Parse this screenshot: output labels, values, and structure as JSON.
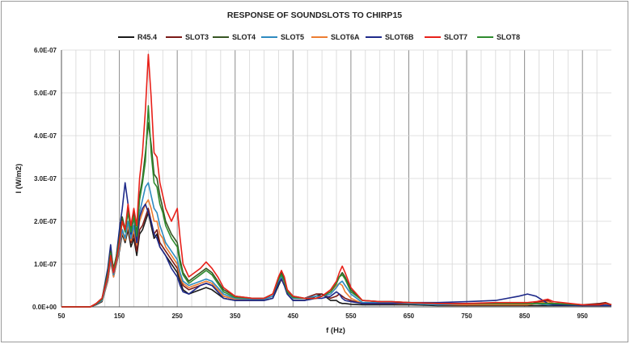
{
  "chart_data": {
    "type": "line",
    "title": "RESPONSE OF SOUNDSLOTS TO CHIRP15",
    "xlabel": "f (Hz)",
    "ylabel": "I (W/m2)",
    "xlim": [
      50,
      1000
    ],
    "ylim": [
      0,
      6e-07
    ],
    "x_ticks": [
      "50",
      "150",
      "250",
      "350",
      "450",
      "550",
      "650",
      "750",
      "850",
      "950"
    ],
    "y_ticks": [
      "0.0E+00",
      "1.0E-07",
      "2.0E-07",
      "3.0E-07",
      "4.0E-07",
      "5.0E-07",
      "6.0E-07"
    ],
    "grid": true,
    "legend_position": "top",
    "x": [
      50,
      100,
      110,
      120,
      130,
      135,
      140,
      145,
      150,
      155,
      160,
      165,
      170,
      175,
      180,
      185,
      190,
      195,
      200,
      205,
      210,
      215,
      220,
      225,
      230,
      240,
      250,
      255,
      260,
      270,
      280,
      290,
      300,
      310,
      320,
      330,
      350,
      380,
      400,
      415,
      425,
      430,
      435,
      440,
      450,
      470,
      490,
      500,
      515,
      525,
      530,
      535,
      540,
      550,
      570,
      600,
      620,
      650,
      700,
      750,
      800,
      840,
      855,
      870,
      890,
      900,
      950,
      980,
      990,
      1000
    ],
    "series": [
      {
        "name": "R45.4",
        "color": "#1a1a1a",
        "values": [
          0,
          0,
          5e-09,
          1.2e-08,
          6e-08,
          1.1e-07,
          7e-08,
          1e-07,
          1.3e-07,
          1.7e-07,
          1.5e-07,
          1.8e-07,
          1.4e-07,
          1.6e-07,
          1.2e-07,
          1.7e-07,
          1.8e-07,
          2e-07,
          2.2e-07,
          1.9e-07,
          1.6e-07,
          1.7e-07,
          1.4e-07,
          1.3e-07,
          1.2e-07,
          1e-07,
          8e-08,
          6e-08,
          4e-08,
          3e-08,
          3.5e-08,
          4e-08,
          4.5e-08,
          4e-08,
          3e-08,
          2e-08,
          1.5e-08,
          1.5e-08,
          1.5e-08,
          2e-08,
          5e-08,
          6.5e-08,
          5e-08,
          3e-08,
          1.5e-08,
          1.5e-08,
          2.5e-08,
          3e-08,
          1.5e-08,
          1.5e-08,
          1e-08,
          8e-09,
          8e-09,
          6e-09,
          5e-09,
          5e-09,
          5e-09,
          5e-09,
          3e-09,
          3e-09,
          3e-09,
          3e-09,
          3e-09,
          3e-09,
          3e-09,
          3e-09,
          3e-09,
          3e-09,
          3e-09,
          3e-09
        ]
      },
      {
        "name": "SLOT3",
        "color": "#7b1a17",
        "values": [
          0,
          0,
          6e-09,
          1.5e-08,
          7e-08,
          1.2e-07,
          8e-08,
          1.1e-07,
          1.4e-07,
          1.8e-07,
          1.6e-07,
          1.9e-07,
          1.5e-07,
          1.7e-07,
          1.3e-07,
          1.8e-07,
          1.9e-07,
          2.1e-07,
          2.3e-07,
          2e-07,
          1.7e-07,
          1.8e-07,
          1.5e-07,
          1.4e-07,
          1.3e-07,
          1.1e-07,
          9e-08,
          7e-08,
          5e-08,
          4e-08,
          4.5e-08,
          5e-08,
          5.5e-08,
          5e-08,
          4e-08,
          2.5e-08,
          1.8e-08,
          1.8e-08,
          1.8e-08,
          2.5e-08,
          5.5e-08,
          7e-08,
          5.5e-08,
          3.5e-08,
          2e-08,
          2e-08,
          3e-08,
          3e-08,
          2e-08,
          2.5e-08,
          3e-08,
          2.5e-08,
          2e-08,
          1.5e-08,
          8e-09,
          8e-09,
          8e-09,
          8e-09,
          5e-09,
          5e-09,
          5e-09,
          5e-09,
          5e-09,
          1e-08,
          1.5e-08,
          8e-09,
          5e-09,
          8e-09,
          1e-08,
          5e-09
        ]
      },
      {
        "name": "SLOT4",
        "color": "#375623",
        "values": [
          0,
          0,
          8e-09,
          2e-08,
          8e-08,
          1.3e-07,
          9e-08,
          1.2e-07,
          1.6e-07,
          2.1e-07,
          1.8e-07,
          2.3e-07,
          1.8e-07,
          2.2e-07,
          1.7e-07,
          2.6e-07,
          3e-07,
          3.6e-07,
          4.3e-07,
          3.8e-07,
          3.1e-07,
          3e-07,
          2.6e-07,
          2.3e-07,
          2e-07,
          1.7e-07,
          1.5e-07,
          1.1e-07,
          8e-08,
          6e-08,
          7e-08,
          8e-08,
          9e-08,
          8e-08,
          6e-08,
          4e-08,
          2.5e-08,
          2e-08,
          2e-08,
          3e-08,
          6.5e-08,
          8e-08,
          6.5e-08,
          4e-08,
          2.5e-08,
          2e-08,
          2e-08,
          2.5e-08,
          3.5e-08,
          5.5e-08,
          7e-08,
          8e-08,
          7e-08,
          4e-08,
          1.5e-08,
          1.2e-08,
          1.2e-08,
          1e-08,
          8e-09,
          8e-09,
          8e-09,
          8e-09,
          8e-09,
          8e-09,
          8e-09,
          8e-09,
          5e-09,
          5e-09,
          8e-09,
          5e-09
        ]
      },
      {
        "name": "SLOT5",
        "color": "#2e8bc0",
        "values": [
          0,
          0,
          6e-09,
          1.5e-08,
          6.5e-08,
          1.1e-07,
          7.5e-08,
          1.05e-07,
          1.4e-07,
          1.8e-07,
          1.6e-07,
          2e-07,
          1.6e-07,
          1.9e-07,
          1.5e-07,
          2.2e-07,
          2.5e-07,
          2.8e-07,
          2.9e-07,
          2.6e-07,
          2.3e-07,
          2.2e-07,
          1.9e-07,
          1.7e-07,
          1.5e-07,
          1.3e-07,
          1.1e-07,
          8e-08,
          6e-08,
          5e-08,
          5.5e-08,
          6e-08,
          6.5e-08,
          6e-08,
          4.5e-08,
          3e-08,
          2e-08,
          1.8e-08,
          1.8e-08,
          2.5e-08,
          6e-08,
          7e-08,
          6e-08,
          3.5e-08,
          2e-08,
          2e-08,
          2.5e-08,
          2.5e-08,
          3e-08,
          4.5e-08,
          5.5e-08,
          6e-08,
          5e-08,
          3e-08,
          1e-08,
          1e-08,
          1e-08,
          8e-09,
          5e-09,
          8e-09,
          8e-09,
          8e-09,
          8e-09,
          8e-09,
          5e-09,
          5e-09,
          5e-09,
          5e-09,
          5e-09,
          5e-09
        ]
      },
      {
        "name": "SLOT6A",
        "color": "#ed7d31",
        "values": [
          0,
          0,
          6e-09,
          1.4e-08,
          6e-08,
          1.05e-07,
          7e-08,
          1e-07,
          1.35e-07,
          1.75e-07,
          1.55e-07,
          1.9e-07,
          1.55e-07,
          1.8e-07,
          1.45e-07,
          2e-07,
          2.2e-07,
          2.4e-07,
          2.5e-07,
          2.3e-07,
          2e-07,
          2e-07,
          1.7e-07,
          1.6e-07,
          1.4e-07,
          1.2e-07,
          1e-07,
          7e-08,
          5.5e-08,
          4.5e-08,
          5e-08,
          5.5e-08,
          6e-08,
          5.5e-08,
          4e-08,
          2.5e-08,
          1.8e-08,
          1.8e-08,
          1.8e-08,
          2.5e-08,
          5.5e-08,
          6.5e-08,
          5.5e-08,
          3.5e-08,
          2e-08,
          2e-08,
          2e-08,
          2.5e-08,
          3.5e-08,
          5e-08,
          5.5e-08,
          5e-08,
          3.5e-08,
          2e-08,
          8e-09,
          8e-09,
          8e-09,
          8e-09,
          5e-09,
          5e-09,
          5e-09,
          5e-09,
          5e-09,
          8e-09,
          1.2e-08,
          8e-09,
          5e-09,
          5e-09,
          8e-09,
          5e-09
        ]
      },
      {
        "name": "SLOT6B",
        "color": "#1f2a8a",
        "values": [
          0,
          0,
          7e-09,
          1.8e-08,
          9e-08,
          1.45e-07,
          8e-08,
          1.2e-07,
          1.8e-07,
          2.3e-07,
          2.9e-07,
          2.4e-07,
          1.7e-07,
          2.1e-07,
          1.5e-07,
          2.1e-07,
          2.3e-07,
          2.4e-07,
          2.2e-07,
          2e-07,
          1.7e-07,
          1.6e-07,
          1.4e-07,
          1.3e-07,
          1.2e-07,
          9e-08,
          7e-08,
          5e-08,
          3.5e-08,
          3e-08,
          4e-08,
          5e-08,
          5.5e-08,
          5e-08,
          3.5e-08,
          2e-08,
          1.5e-08,
          1.5e-08,
          1.5e-08,
          2e-08,
          5.5e-08,
          6.5e-08,
          5e-08,
          3e-08,
          1.5e-08,
          1.5e-08,
          2e-08,
          2e-08,
          2.5e-08,
          3.5e-08,
          3e-08,
          2e-08,
          1.5e-08,
          1.2e-08,
          8e-09,
          8e-09,
          8e-09,
          1e-08,
          1e-08,
          1.2e-08,
          1.5e-08,
          2.5e-08,
          3e-08,
          2.5e-08,
          8e-09,
          5e-09,
          3e-09,
          3e-09,
          3e-09,
          3e-09
        ]
      },
      {
        "name": "SLOT7",
        "color": "#e8211a",
        "values": [
          0,
          0,
          8e-09,
          2e-08,
          7e-08,
          1.2e-07,
          8e-08,
          1.1e-07,
          1.5e-07,
          2e-07,
          1.8e-07,
          2.4e-07,
          1.9e-07,
          2.3e-07,
          1.9e-07,
          3e-07,
          3.6e-07,
          4.6e-07,
          5.9e-07,
          4.9e-07,
          3.6e-07,
          3.5e-07,
          2.9e-07,
          2.6e-07,
          2.3e-07,
          2e-07,
          2.3e-07,
          1.6e-07,
          1e-07,
          7e-08,
          8e-08,
          9e-08,
          1.05e-07,
          9e-08,
          7e-08,
          4.5e-08,
          2.5e-08,
          2e-08,
          2e-08,
          3e-08,
          7e-08,
          8.5e-08,
          7e-08,
          4e-08,
          2.5e-08,
          2e-08,
          2e-08,
          2.5e-08,
          4e-08,
          6e-08,
          8e-08,
          9.5e-08,
          8e-08,
          4.5e-08,
          1.5e-08,
          1.2e-08,
          1.2e-08,
          1e-08,
          8e-09,
          8e-09,
          1e-08,
          1e-08,
          1e-08,
          1.2e-08,
          1.8e-08,
          1.2e-08,
          5e-09,
          5e-09,
          8e-09,
          5e-09
        ]
      },
      {
        "name": "SLOT8",
        "color": "#2e8b2e",
        "values": [
          0,
          0,
          7e-09,
          1.8e-08,
          7.5e-08,
          1.25e-07,
          8.5e-08,
          1.15e-07,
          1.55e-07,
          2e-07,
          1.75e-07,
          2.2e-07,
          1.75e-07,
          2.1e-07,
          1.65e-07,
          2.5e-07,
          2.9e-07,
          3.4e-07,
          4.7e-07,
          3.6e-07,
          2.9e-07,
          2.8e-07,
          2.4e-07,
          2.2e-07,
          1.9e-07,
          1.6e-07,
          1.4e-07,
          1e-07,
          7.5e-08,
          5.5e-08,
          6.5e-08,
          7.5e-08,
          8.5e-08,
          7.5e-08,
          5.5e-08,
          3.5e-08,
          2.2e-08,
          2e-08,
          2e-08,
          3e-08,
          6.5e-08,
          7.5e-08,
          6e-08,
          3.5e-08,
          2.2e-08,
          2e-08,
          2e-08,
          2.5e-08,
          3.5e-08,
          5.5e-08,
          7e-08,
          7.5e-08,
          6.5e-08,
          3.5e-08,
          1.5e-08,
          1.2e-08,
          1.2e-08,
          1e-08,
          8e-09,
          8e-09,
          8e-09,
          8e-09,
          8e-09,
          8e-09,
          8e-09,
          8e-09,
          5e-09,
          5e-09,
          8e-09,
          5e-09
        ]
      }
    ]
  }
}
